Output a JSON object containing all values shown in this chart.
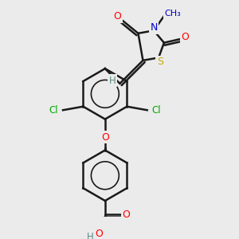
{
  "bg_color": "#ebebeb",
  "bond_color": "#1a1a1a",
  "atom_colors": {
    "O": "#ff0000",
    "N": "#0000cc",
    "S": "#ccaa00",
    "Cl": "#00aa00",
    "C": "#1a1a1a",
    "H": "#5a8a8a"
  },
  "lw": 1.8
}
